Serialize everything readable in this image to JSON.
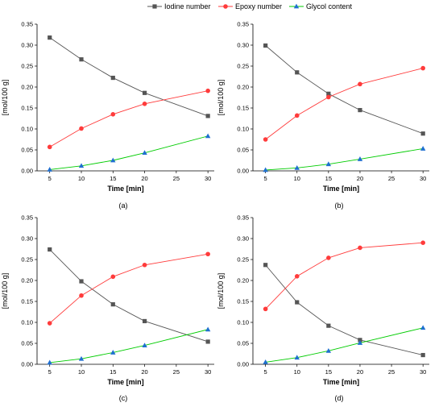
{
  "legend": {
    "items": [
      {
        "name": "Iodine number",
        "color": "#555555",
        "marker": "square"
      },
      {
        "name": "Epoxy number",
        "color": "#ff3b3b",
        "marker": "circle"
      },
      {
        "name": "Glycol content",
        "color": "#00cc00",
        "marker_color": "#1f6fd0",
        "marker": "triangle"
      }
    ]
  },
  "chart_data": [
    {
      "type": "line",
      "panel_label": "(a)",
      "xlabel": "Time [min]",
      "ylabel": "[mol/100 g]",
      "x": [
        5,
        10,
        15,
        20,
        30
      ],
      "xlim": [
        3,
        31
      ],
      "ylim": [
        0,
        0.35
      ],
      "xticks": [
        "5",
        "10",
        "15",
        "20",
        "25",
        "30"
      ],
      "yticks": [
        "0.00",
        "0.05",
        "0.10",
        "0.15",
        "0.20",
        "0.25",
        "0.30",
        "0.35"
      ],
      "series": [
        {
          "name": "Iodine number",
          "values": [
            0.318,
            0.266,
            0.222,
            0.186,
            0.131
          ]
        },
        {
          "name": "Epoxy number",
          "values": [
            0.057,
            0.101,
            0.135,
            0.16,
            0.191
          ]
        },
        {
          "name": "Glycol content",
          "values": [
            0.003,
            0.012,
            0.025,
            0.043,
            0.083
          ]
        }
      ]
    },
    {
      "type": "line",
      "panel_label": "(b)",
      "xlabel": "Time [min]",
      "ylabel": "[mol/100 g]",
      "x": [
        5,
        10,
        15,
        20,
        30
      ],
      "xlim": [
        3,
        31
      ],
      "ylim": [
        0,
        0.35
      ],
      "xticks": [
        "5",
        "10",
        "15",
        "20",
        "25",
        "30"
      ],
      "yticks": [
        "0.00",
        "0.05",
        "0.10",
        "0.15",
        "0.20",
        "0.25",
        "0.30",
        "0.35"
      ],
      "series": [
        {
          "name": "Iodine number",
          "values": [
            0.299,
            0.235,
            0.184,
            0.145,
            0.089
          ]
        },
        {
          "name": "Epoxy number",
          "values": [
            0.075,
            0.132,
            0.176,
            0.207,
            0.245
          ]
        },
        {
          "name": "Glycol content",
          "values": [
            0.002,
            0.007,
            0.016,
            0.028,
            0.053
          ]
        }
      ]
    },
    {
      "type": "line",
      "panel_label": "(c)",
      "xlabel": "Time [min]",
      "ylabel": "[mol/100 g]",
      "x": [
        5,
        10,
        15,
        20,
        30
      ],
      "xlim": [
        3,
        31
      ],
      "ylim": [
        0,
        0.35
      ],
      "xticks": [
        "5",
        "10",
        "15",
        "20",
        "25",
        "30"
      ],
      "yticks": [
        "0.00",
        "0.05",
        "0.10",
        "0.15",
        "0.20",
        "0.25",
        "0.30",
        "0.35"
      ],
      "series": [
        {
          "name": "Iodine number",
          "values": [
            0.274,
            0.198,
            0.143,
            0.103,
            0.054
          ]
        },
        {
          "name": "Epoxy number",
          "values": [
            0.098,
            0.164,
            0.209,
            0.237,
            0.263
          ]
        },
        {
          "name": "Glycol content",
          "values": [
            0.004,
            0.013,
            0.028,
            0.045,
            0.083
          ]
        }
      ]
    },
    {
      "type": "line",
      "panel_label": "(d)",
      "xlabel": "Time [min]",
      "ylabel": "[mol/100 g]",
      "x": [
        5,
        10,
        15,
        20,
        30
      ],
      "xlim": [
        3,
        31
      ],
      "ylim": [
        0,
        0.35
      ],
      "xticks": [
        "5",
        "10",
        "15",
        "20",
        "25",
        "30"
      ],
      "yticks": [
        "0.00",
        "0.05",
        "0.10",
        "0.15",
        "0.20",
        "0.25",
        "0.30",
        "0.35"
      ],
      "series": [
        {
          "name": "Iodine number",
          "values": [
            0.237,
            0.148,
            0.092,
            0.058,
            0.022
          ]
        },
        {
          "name": "Epoxy number",
          "values": [
            0.132,
            0.21,
            0.254,
            0.278,
            0.29
          ]
        },
        {
          "name": "Glycol content",
          "values": [
            0.005,
            0.016,
            0.032,
            0.051,
            0.087
          ]
        }
      ]
    }
  ]
}
